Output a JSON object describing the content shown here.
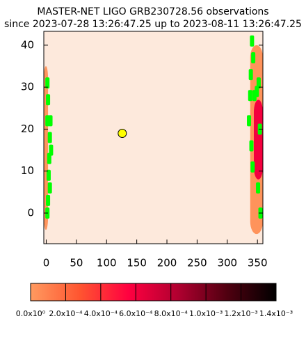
{
  "chart_data": {
    "type": "scatter",
    "title": "MASTER-NET LIGO GRB230728.56 observations",
    "subtitle": "since 2023-07-28 13:26:47.25 up to 2023-08-11 13:26:47.25",
    "background": "#fde9dc",
    "xlim": [
      -4,
      359
    ],
    "ylim": [
      -7.3,
      43.3
    ],
    "xticks": [
      0,
      50,
      100,
      150,
      200,
      250,
      300,
      350
    ],
    "yticks": [
      0,
      10,
      20,
      30,
      40
    ],
    "regions": [
      {
        "x": [
          -4,
          3
        ],
        "y": [
          -4,
          35
        ],
        "value": 2e-05
      },
      {
        "x": [
          338,
          359
        ],
        "y": [
          -5,
          40
        ],
        "value": 3e-05
      },
      {
        "x": [
          344,
          359
        ],
        "y": [
          8,
          27
        ],
        "value": 0.0006
      }
    ],
    "series": [
      {
        "name": "fields",
        "color": "#00ff00",
        "x": [
          2,
          3,
          2,
          7,
          8,
          5,
          4,
          6,
          3,
          2,
          6,
          341,
          343,
          339,
          345,
          352,
          349,
          336,
          338,
          354,
          342,
          355,
          351,
          340
        ],
        "y": [
          31,
          27,
          22,
          22,
          15,
          13,
          9,
          6,
          3,
          0,
          18,
          41,
          37,
          33,
          28,
          31,
          29,
          22,
          28,
          20,
          11,
          0,
          6,
          16
        ]
      },
      {
        "name": "sun",
        "color": "#ffff00",
        "x": [
          126
        ],
        "y": [
          19
        ]
      }
    ],
    "colorbar": {
      "colormap": [
        "#ff9a60",
        "#ff5530",
        "#ff0040",
        "#b00030",
        "#500010",
        "#000000"
      ],
      "lim": [
        0,
        0.0014
      ],
      "ticks": [
        {
          "value": 0,
          "label": "0.0x10⁰"
        },
        {
          "value": 0.0002,
          "label": "2.0x10⁻⁴"
        },
        {
          "value": 0.0004,
          "label": "4.0x10⁻⁴"
        },
        {
          "value": 0.0006,
          "label": "6.0x10⁻⁴"
        },
        {
          "value": 0.0008,
          "label": "8.0x10⁻⁴"
        },
        {
          "value": 0.001,
          "label": "1.0x10⁻³"
        },
        {
          "value": 0.0012,
          "label": "1.2x10⁻³"
        },
        {
          "value": 0.0014,
          "label": "1.4x10⁻³"
        }
      ]
    }
  }
}
